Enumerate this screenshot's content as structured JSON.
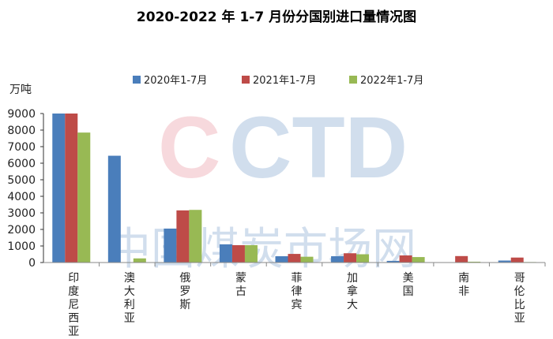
{
  "chart_data": {
    "type": "bar",
    "title": "2020-2022 年 1-7 月份分国别进口量情况图",
    "ylabel": "万吨",
    "ylim": [
      0,
      9000
    ],
    "yticks": [
      0,
      1000,
      2000,
      3000,
      4000,
      5000,
      6000,
      7000,
      8000,
      9000
    ],
    "categories": [
      "印度尼西亚",
      "澳大利亚",
      "俄罗斯",
      "蒙古",
      "菲律宾",
      "加拿大",
      "美国",
      "南非",
      "哥伦比亚"
    ],
    "series": [
      {
        "name": "2020年1-7月",
        "color": "#4a7ebb",
        "values": [
          9000,
          6450,
          2050,
          1100,
          380,
          380,
          100,
          0,
          120
        ]
      },
      {
        "name": "2021年1-7月",
        "color": "#be4b48",
        "values": [
          9000,
          0,
          3150,
          1050,
          520,
          560,
          430,
          390,
          300
        ]
      },
      {
        "name": "2022年1-7月",
        "color": "#98b954",
        "values": [
          7850,
          250,
          3180,
          1050,
          350,
          500,
          330,
          50,
          30
        ]
      }
    ],
    "legend_position": "top",
    "grid": false,
    "watermark": {
      "logo": "CCTD",
      "text": "中国煤炭市场网",
      "url": "www.cctd.com.cn"
    }
  }
}
